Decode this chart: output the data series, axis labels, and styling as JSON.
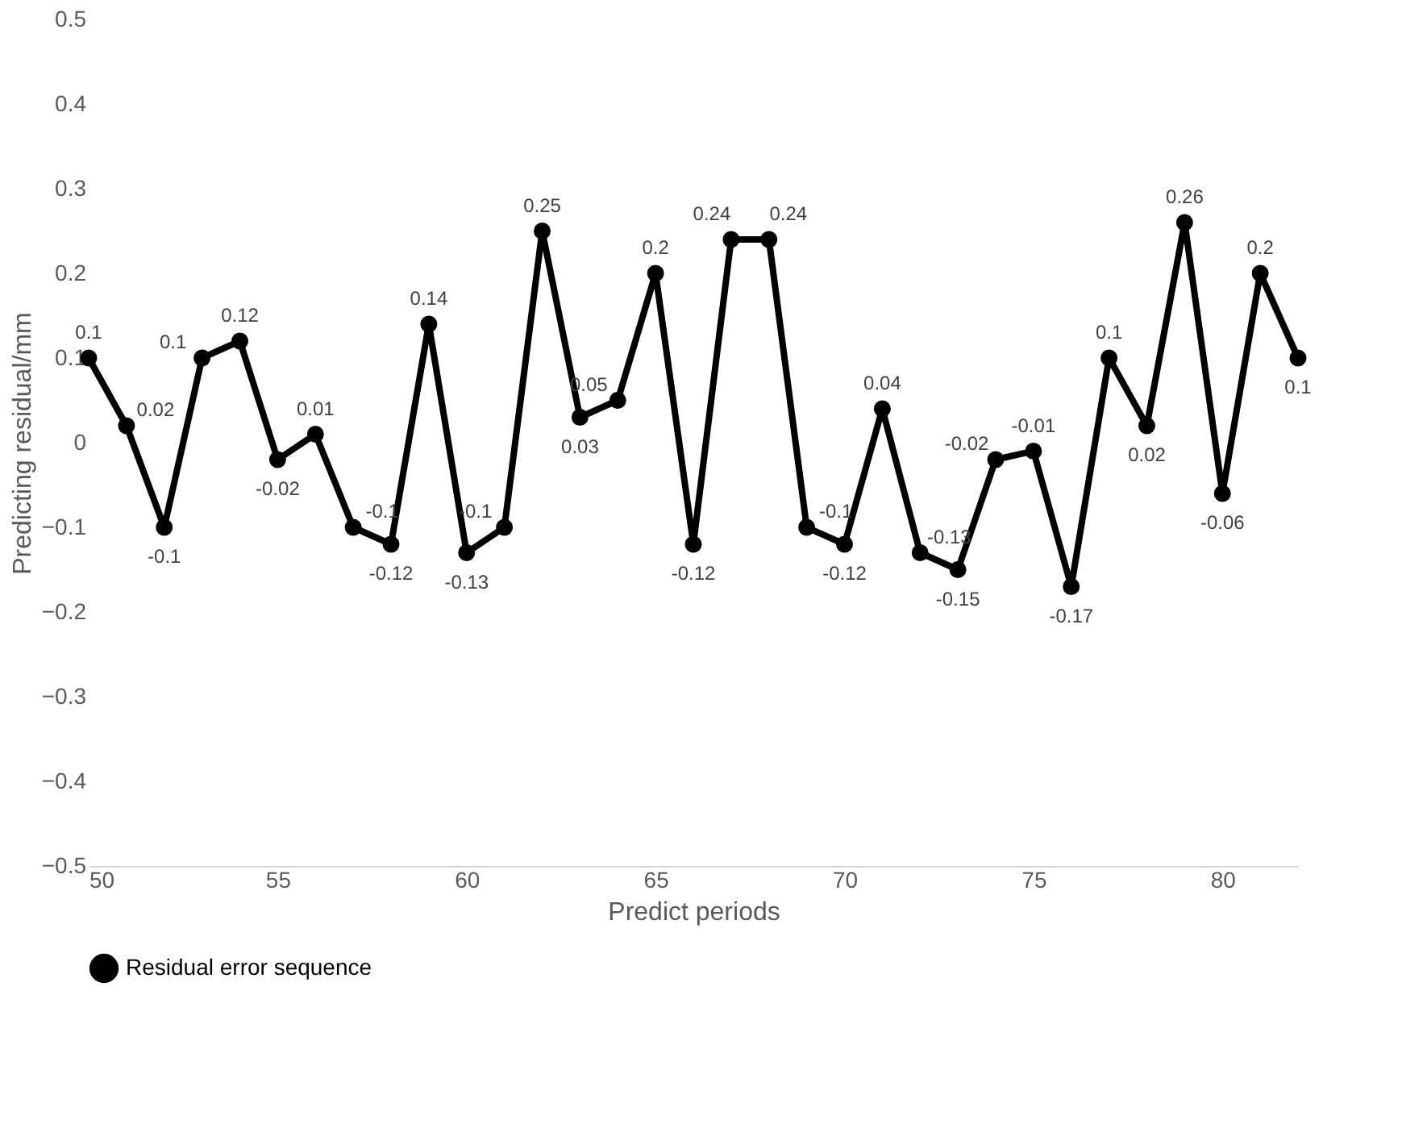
{
  "chart_data": {
    "type": "line",
    "xlabel": "Predict periods",
    "ylabel": "Predicting residual/mm",
    "x": [
      50,
      51,
      52,
      53,
      54,
      55,
      56,
      57,
      58,
      59,
      60,
      61,
      62,
      63,
      64,
      65,
      66,
      67,
      68,
      69,
      70,
      71,
      72,
      73,
      74,
      75,
      76,
      77,
      78,
      79,
      80,
      81,
      82
    ],
    "series": [
      {
        "name": "Residual error sequence",
        "color": "#000000",
        "values": [
          0.1,
          0.02,
          -0.1,
          0.1,
          0.12,
          -0.02,
          0.01,
          -0.1,
          -0.12,
          0.14,
          -0.13,
          -0.1,
          0.25,
          0.03,
          0.05,
          0.2,
          -0.12,
          0.24,
          0.24,
          -0.1,
          -0.12,
          0.04,
          -0.13,
          -0.15,
          -0.02,
          -0.01,
          -0.17,
          0.1,
          0.02,
          0.26,
          -0.06,
          0.2,
          0.1
        ]
      }
    ],
    "xlim": [
      50,
      82
    ],
    "xticks": [
      50,
      55,
      60,
      65,
      70,
      75,
      80
    ],
    "ylim": [
      -0.5,
      0.5
    ],
    "yticks": [
      -0.5,
      -0.4,
      -0.3,
      -0.2,
      -0.1,
      {
        "value": 0,
        "label": "0"
      },
      0.1,
      0.2,
      0.3,
      0.4,
      0.5
    ],
    "grid": false,
    "legend": "bottom",
    "marker": "circle",
    "line_style": "solid",
    "data_labels": true
  }
}
